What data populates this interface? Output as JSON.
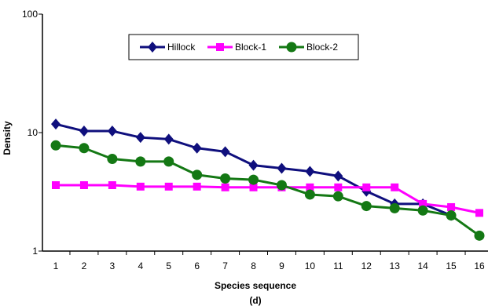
{
  "chart_data": {
    "type": "line",
    "yscale": "log",
    "title": "",
    "xlabel": "Species sequence",
    "ylabel": "Density",
    "caption": "(d)",
    "ylim": [
      1,
      100
    ],
    "yticks": [
      "1",
      "10",
      "100"
    ],
    "x": [
      1,
      2,
      3,
      4,
      5,
      6,
      7,
      8,
      9,
      10,
      11,
      12,
      13,
      14,
      15,
      16
    ],
    "legend_position": "top-center",
    "grid": false,
    "series": [
      {
        "name": "Hillock",
        "color": "#0f0f7d",
        "marker": "diamond",
        "values": [
          11.8,
          10.3,
          10.3,
          9.1,
          8.8,
          7.4,
          6.9,
          5.3,
          5.0,
          4.7,
          4.3,
          3.2,
          2.5,
          2.5,
          2.0,
          null
        ]
      },
      {
        "name": "Block-1",
        "color": "#ff00ff",
        "marker": "square",
        "values": [
          3.6,
          3.6,
          3.6,
          3.5,
          3.5,
          3.5,
          3.45,
          3.45,
          3.45,
          3.45,
          3.45,
          3.45,
          3.45,
          2.5,
          2.35,
          2.1
        ]
      },
      {
        "name": "Block-2",
        "color": "#147814",
        "marker": "circle",
        "values": [
          7.8,
          7.4,
          6.0,
          5.7,
          5.7,
          4.4,
          4.1,
          4.0,
          3.6,
          3.0,
          2.9,
          2.4,
          2.3,
          2.2,
          2.0,
          1.35
        ]
      }
    ]
  }
}
